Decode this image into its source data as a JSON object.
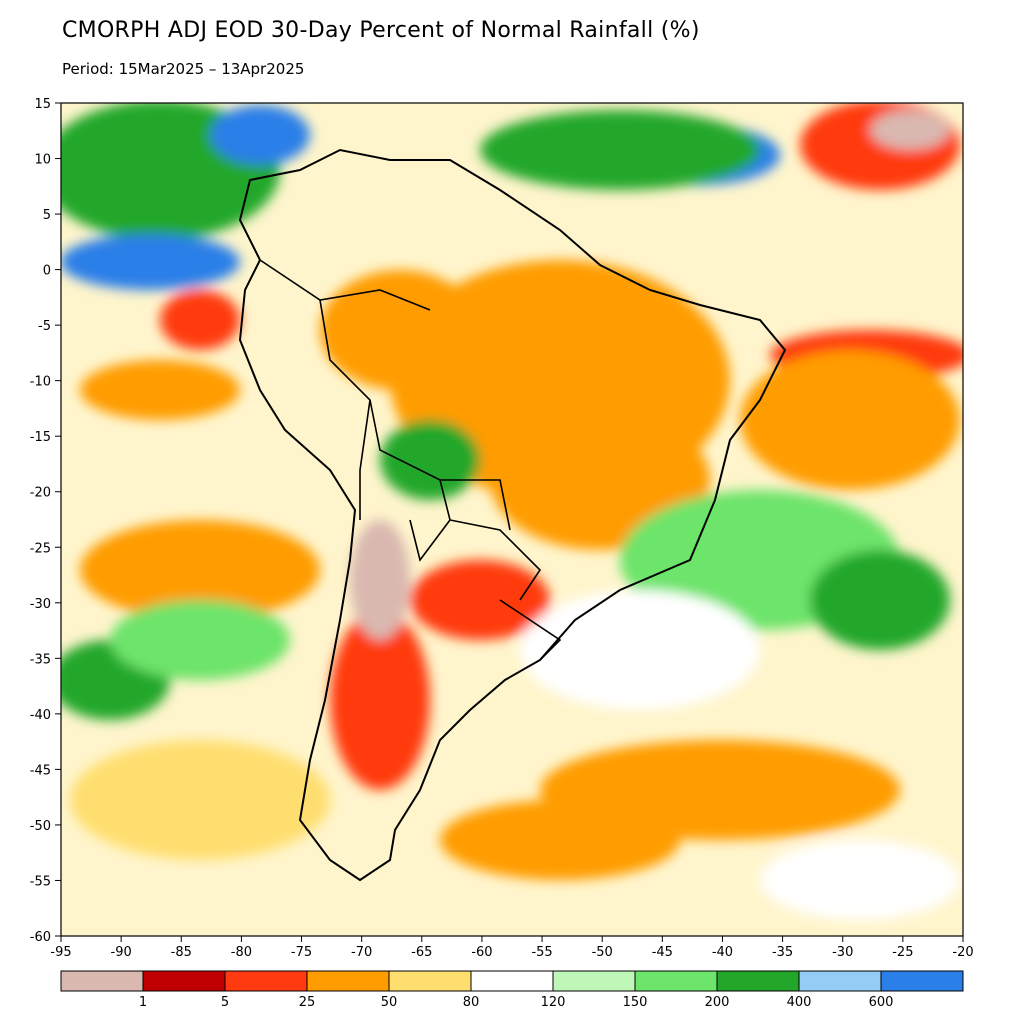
{
  "title": "CMORPH ADJ EOD 30-Day Percent of Normal Rainfall (%)",
  "subtitle": "Period: 15Mar2025 – 13Apr2025",
  "map": {
    "region": "South America",
    "lon_range": [
      -95,
      -20
    ],
    "lat_range": [
      -60,
      15
    ],
    "x_ticks": [
      "-95",
      "-90",
      "-85",
      "-80",
      "-75",
      "-70",
      "-65",
      "-60",
      "-55",
      "-50",
      "-45",
      "-40",
      "-35",
      "-30",
      "-25",
      "-20"
    ],
    "y_ticks": [
      "15",
      "10",
      "5",
      "0",
      "-5",
      "-10",
      "-15",
      "-20",
      "-25",
      "-30",
      "-35",
      "-40",
      "-45",
      "-50",
      "-55",
      "-60"
    ]
  },
  "legend": {
    "colors": [
      "#d9b8b0",
      "#c00000",
      "#ff3a10",
      "#ff9c00",
      "#ffde70",
      "#ffffff",
      "#bff7b8",
      "#6de46a",
      "#22a72a",
      "#95ccf5",
      "#2b7fe8"
    ],
    "labels": [
      "1",
      "5",
      "25",
      "50",
      "80",
      "120",
      "150",
      "200",
      "400",
      "600"
    ]
  }
}
